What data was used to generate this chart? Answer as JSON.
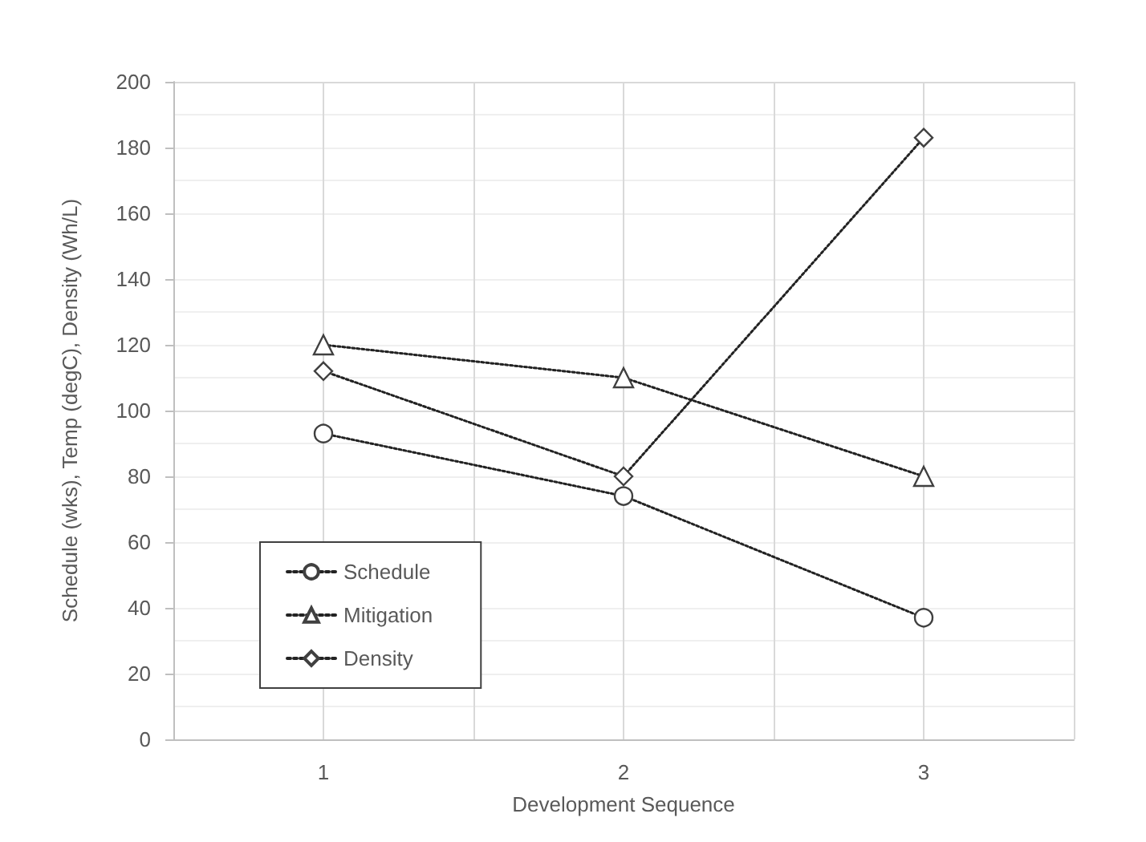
{
  "chart_data": {
    "type": "line",
    "xlabel": "Development Sequence",
    "ylabel": "Schedule (wks), Temp (degC), Density (Wh/L)",
    "x": [
      1,
      2,
      3
    ],
    "series": [
      {
        "name": "Schedule",
        "color": "#404040",
        "marker": "circle",
        "values": [
          93,
          74,
          37
        ]
      },
      {
        "name": "Mitigation",
        "color": "#404040",
        "marker": "triangle",
        "values": [
          120,
          110,
          80
        ]
      },
      {
        "name": "Density",
        "color": "#404040",
        "marker": "diamond",
        "values": [
          112,
          80,
          183
        ]
      }
    ],
    "xlim": [
      0.5,
      3.5
    ],
    "xticks": [
      {
        "value": 0.5,
        "label": null
      },
      1,
      {
        "value": 1.5,
        "label": null
      },
      2,
      {
        "value": 2.5,
        "label": null
      },
      3,
      {
        "value": 3.5,
        "label": null
      }
    ],
    "ylim": [
      0,
      200
    ],
    "yticks": [
      0,
      20,
      40,
      60,
      80,
      100,
      120,
      140,
      160,
      180,
      200
    ],
    "grid": true,
    "legend": "bottom left",
    "line_style": "dotted"
  }
}
